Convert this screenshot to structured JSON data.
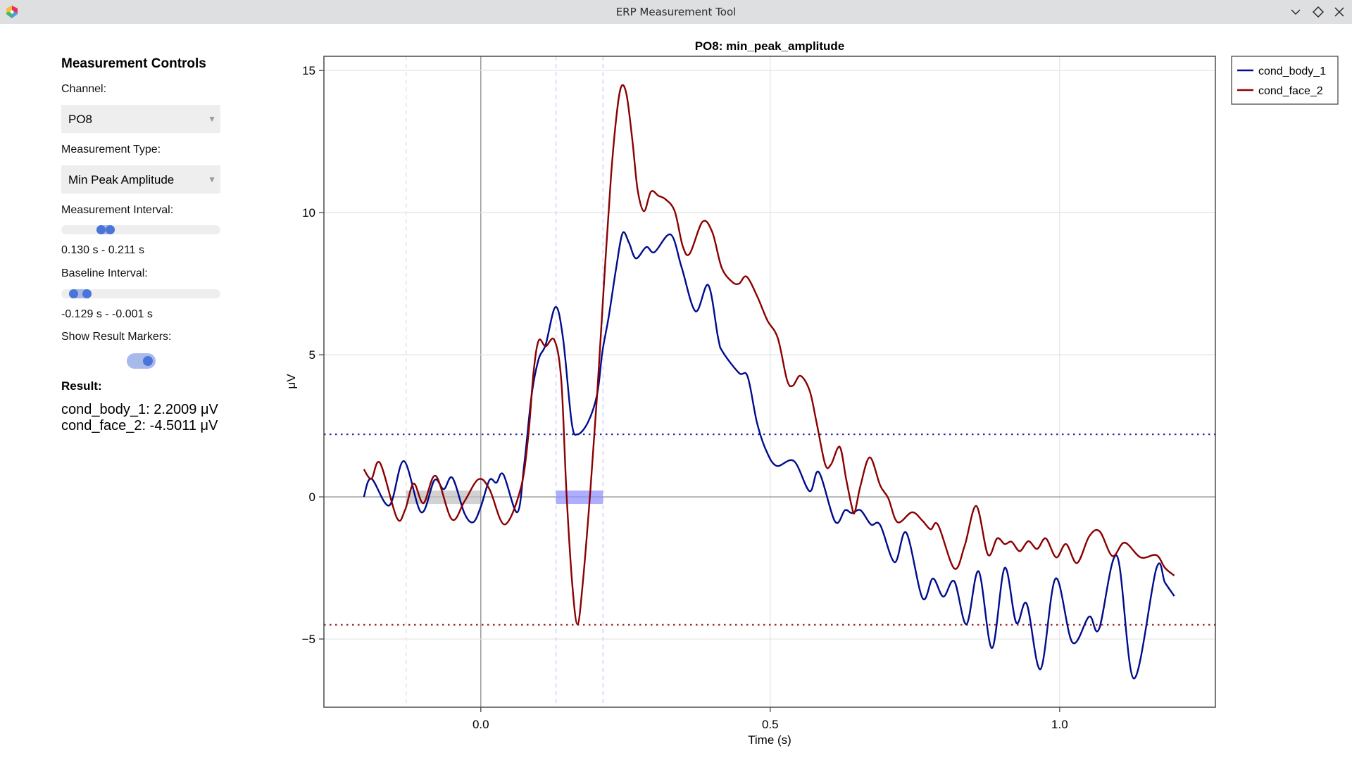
{
  "window": {
    "title": "ERP Measurement Tool",
    "buttons": [
      "minimize",
      "maximize",
      "close"
    ]
  },
  "controls": {
    "heading": "Measurement Controls",
    "channel_label": "Channel:",
    "channel_value": "PO8",
    "measurement_type_label": "Measurement Type:",
    "measurement_type_value": "Min Peak Amplitude",
    "measurement_interval_label": "Measurement Interval:",
    "measurement_interval_text": "0.130 s - 0.211 s",
    "measurement_interval": [
      0.13,
      0.211
    ],
    "baseline_interval_label": "Baseline Interval:",
    "baseline_interval_text": "-0.129 s - -0.001 s",
    "baseline_interval": [
      -0.129,
      -0.001
    ],
    "slider_range": [
      -0.2,
      1.2
    ],
    "show_markers_label": "Show Result Markers:",
    "show_markers": true,
    "result_heading": "Result:",
    "results": [
      "cond_body_1: 2.2009 μV",
      "cond_face_2: -4.5011 μV"
    ]
  },
  "chart_data": {
    "type": "line",
    "title": "PO8: min_peak_amplitude",
    "xlabel": "Time (s)",
    "ylabel": "μV",
    "xlim": [
      -0.271,
      1.269
    ],
    "ylim": [
      -7.4,
      15.5
    ],
    "xticks": [
      0.0,
      0.5,
      1.0
    ],
    "xtick_labels": [
      "0.0",
      "0.5",
      "1.0"
    ],
    "yticks": [
      -5,
      0,
      5,
      10,
      15
    ],
    "ytick_labels": [
      "−5",
      "0",
      "5",
      "10",
      "15"
    ],
    "grid": true,
    "legend_position": "outside-top-right",
    "baseline_interval": [
      -0.129,
      -0.001
    ],
    "measurement_interval": [
      0.13,
      0.211
    ],
    "result_markers": [
      {
        "series": "cond_body_1",
        "value": 2.2009,
        "color": "#2b2b9a"
      },
      {
        "series": "cond_face_2",
        "value": -4.5011,
        "color": "#9a2b2b"
      }
    ],
    "series": [
      {
        "name": "cond_body_1",
        "color": "#000c8c",
        "points": [
          [
            -0.202,
            0
          ],
          [
            -0.189,
            0.64
          ],
          [
            -0.158,
            -0.3
          ],
          [
            -0.133,
            1.26
          ],
          [
            -0.103,
            -0.54
          ],
          [
            -0.08,
            0.59
          ],
          [
            -0.064,
            0.27
          ],
          [
            -0.049,
            0.67
          ],
          [
            -0.028,
            -0.59
          ],
          [
            -0.013,
            -0.89
          ],
          [
            0,
            -0.35
          ],
          [
            0.015,
            0.59
          ],
          [
            0.027,
            0.5
          ],
          [
            0.039,
            0.79
          ],
          [
            0.063,
            -0.54
          ],
          [
            0.075,
            1.14
          ],
          [
            0.088,
            3.61
          ],
          [
            0.1,
            4.85
          ],
          [
            0.112,
            5.35
          ],
          [
            0.129,
            6.68
          ],
          [
            0.142,
            5.59
          ],
          [
            0.157,
            2.62
          ],
          [
            0.167,
            2.2
          ],
          [
            0.185,
            2.62
          ],
          [
            0.201,
            3.61
          ],
          [
            0.21,
            5.1
          ],
          [
            0.221,
            6.34
          ],
          [
            0.234,
            8.07
          ],
          [
            0.245,
            9.28
          ],
          [
            0.256,
            8.94
          ],
          [
            0.268,
            8.39
          ],
          [
            0.286,
            8.79
          ],
          [
            0.3,
            8.61
          ],
          [
            0.328,
            9.23
          ],
          [
            0.347,
            8.07
          ],
          [
            0.371,
            6.53
          ],
          [
            0.393,
            7.45
          ],
          [
            0.41,
            5.59
          ],
          [
            0.418,
            5.1
          ],
          [
            0.446,
            4.36
          ],
          [
            0.461,
            4.23
          ],
          [
            0.477,
            2.62
          ],
          [
            0.493,
            1.63
          ],
          [
            0.511,
            1.09
          ],
          [
            0.541,
            1.26
          ],
          [
            0.568,
            0.2
          ],
          [
            0.584,
            0.87
          ],
          [
            0.612,
            -0.87
          ],
          [
            0.629,
            -0.47
          ],
          [
            0.641,
            -0.57
          ],
          [
            0.656,
            -0.47
          ],
          [
            0.674,
            -0.97
          ],
          [
            0.69,
            -0.99
          ],
          [
            0.715,
            -2.3
          ],
          [
            0.735,
            -1.26
          ],
          [
            0.763,
            -3.56
          ],
          [
            0.781,
            -2.87
          ],
          [
            0.799,
            -3.51
          ],
          [
            0.818,
            -2.97
          ],
          [
            0.839,
            -4.48
          ],
          [
            0.86,
            -2.62
          ],
          [
            0.883,
            -5.32
          ],
          [
            0.905,
            -2.5
          ],
          [
            0.925,
            -4.43
          ],
          [
            0.943,
            -3.76
          ],
          [
            0.967,
            -6.06
          ],
          [
            0.993,
            -2.87
          ],
          [
            1.022,
            -5.12
          ],
          [
            1.051,
            -4.21
          ],
          [
            1.068,
            -4.65
          ],
          [
            1.099,
            -2.08
          ],
          [
            1.128,
            -6.39
          ],
          [
            1.167,
            -2.52
          ],
          [
            1.182,
            -3.02
          ],
          [
            1.198,
            -3.49
          ]
        ]
      },
      {
        "name": "cond_face_2",
        "color": "#8b0000",
        "points": [
          [
            -0.202,
            0.97
          ],
          [
            -0.189,
            0.64
          ],
          [
            -0.174,
            1.19
          ],
          [
            -0.145,
            -0.74
          ],
          [
            -0.131,
            -0.47
          ],
          [
            -0.116,
            0.47
          ],
          [
            -0.099,
            -0.22
          ],
          [
            -0.078,
            0.74
          ],
          [
            -0.05,
            -0.79
          ],
          [
            -0.028,
            -0.15
          ],
          [
            -0.004,
            0.62
          ],
          [
            0.015,
            0.27
          ],
          [
            0.041,
            -0.97
          ],
          [
            0.069,
            0.3
          ],
          [
            0.082,
            2.13
          ],
          [
            0.091,
            4.36
          ],
          [
            0.1,
            5.5
          ],
          [
            0.112,
            5.3
          ],
          [
            0.127,
            5.52
          ],
          [
            0.139,
            4.11
          ],
          [
            0.148,
            0.15
          ],
          [
            0.158,
            -3.07
          ],
          [
            0.167,
            -4.48
          ],
          [
            0.176,
            -3.07
          ],
          [
            0.189,
            0.15
          ],
          [
            0.201,
            3.61
          ],
          [
            0.213,
            7.57
          ],
          [
            0.225,
            11.29
          ],
          [
            0.235,
            13.51
          ],
          [
            0.243,
            14.45
          ],
          [
            0.252,
            14.13
          ],
          [
            0.262,
            12.52
          ],
          [
            0.271,
            10.79
          ],
          [
            0.282,
            10.05
          ],
          [
            0.294,
            10.74
          ],
          [
            0.307,
            10.59
          ],
          [
            0.319,
            10.47
          ],
          [
            0.335,
            10.05
          ],
          [
            0.349,
            8.81
          ],
          [
            0.361,
            8.56
          ],
          [
            0.383,
            9.68
          ],
          [
            0.4,
            9.31
          ],
          [
            0.416,
            8.07
          ],
          [
            0.434,
            7.57
          ],
          [
            0.446,
            7.5
          ],
          [
            0.459,
            7.75
          ],
          [
            0.477,
            7.08
          ],
          [
            0.495,
            6.21
          ],
          [
            0.513,
            5.59
          ],
          [
            0.529,
            4.11
          ],
          [
            0.539,
            3.91
          ],
          [
            0.552,
            4.26
          ],
          [
            0.568,
            3.74
          ],
          [
            0.58,
            2.62
          ],
          [
            0.595,
            1.14
          ],
          [
            0.605,
            1.14
          ],
          [
            0.62,
            1.76
          ],
          [
            0.631,
            0.64
          ],
          [
            0.641,
            -0.35
          ],
          [
            0.646,
            -0.54
          ],
          [
            0.656,
            0.4
          ],
          [
            0.672,
            1.39
          ],
          [
            0.69,
            0.4
          ],
          [
            0.704,
            -0.05
          ],
          [
            0.72,
            -0.89
          ],
          [
            0.745,
            -0.54
          ],
          [
            0.763,
            -0.84
          ],
          [
            0.777,
            -1.14
          ],
          [
            0.79,
            -0.99
          ],
          [
            0.818,
            -2.52
          ],
          [
            0.836,
            -1.71
          ],
          [
            0.856,
            -0.32
          ],
          [
            0.876,
            -2.03
          ],
          [
            0.892,
            -1.46
          ],
          [
            0.905,
            -1.66
          ],
          [
            0.917,
            -1.58
          ],
          [
            0.931,
            -1.91
          ],
          [
            0.946,
            -1.56
          ],
          [
            0.961,
            -1.83
          ],
          [
            0.976,
            -1.46
          ],
          [
            0.994,
            -2.13
          ],
          [
            1.011,
            -1.66
          ],
          [
            1.03,
            -2.33
          ],
          [
            1.051,
            -1.39
          ],
          [
            1.069,
            -1.21
          ],
          [
            1.091,
            -2.08
          ],
          [
            1.112,
            -1.61
          ],
          [
            1.14,
            -2.13
          ],
          [
            1.167,
            -2.05
          ],
          [
            1.182,
            -2.5
          ],
          [
            1.198,
            -2.77
          ]
        ]
      }
    ]
  }
}
